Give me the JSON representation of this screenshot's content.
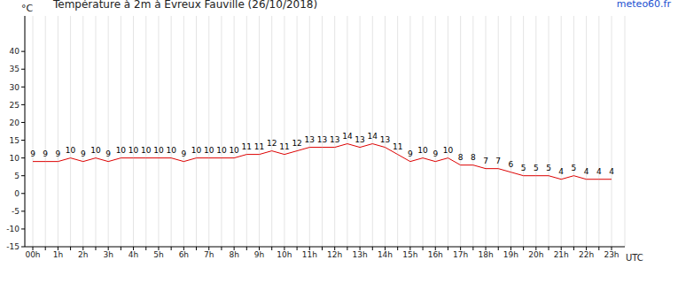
{
  "chart_data": {
    "type": "line",
    "title": "Température à 2m à Evreux Fauville (26/10/2018)",
    "annotation": "meteo60.fr",
    "y_label": "°C",
    "x_label": "UTC",
    "categories": [
      "00h",
      null,
      "1h",
      null,
      "2h",
      null,
      "3h",
      null,
      "4h",
      null,
      "5h",
      null,
      "6h",
      null,
      "7h",
      null,
      "8h",
      null,
      "9h",
      null,
      "10h",
      null,
      "11h",
      null,
      "12h",
      null,
      "13h",
      null,
      "14h",
      null,
      "15h",
      null,
      "16h",
      null,
      "17h",
      null,
      "18h",
      null,
      "19h",
      null,
      "20h",
      null,
      "21h",
      null,
      "22h",
      null,
      "23h"
    ],
    "values": [
      9,
      9,
      9,
      10,
      9,
      10,
      9,
      10,
      10,
      10,
      10,
      10,
      9,
      10,
      10,
      10,
      10,
      11,
      11,
      12,
      11,
      12,
      13,
      13,
      13,
      14,
      13,
      14,
      13,
      11,
      9,
      10,
      9,
      10,
      8,
      8,
      7,
      7,
      6,
      5,
      5,
      5,
      4,
      5,
      4,
      4,
      4
    ],
    "color": "#dd0000",
    "ylim": [
      -15,
      50
    ],
    "yticks": [
      -15,
      -10,
      -5,
      0,
      5,
      10,
      15,
      20,
      25,
      30,
      35,
      40
    ],
    "grid": true,
    "data_labels": true
  }
}
